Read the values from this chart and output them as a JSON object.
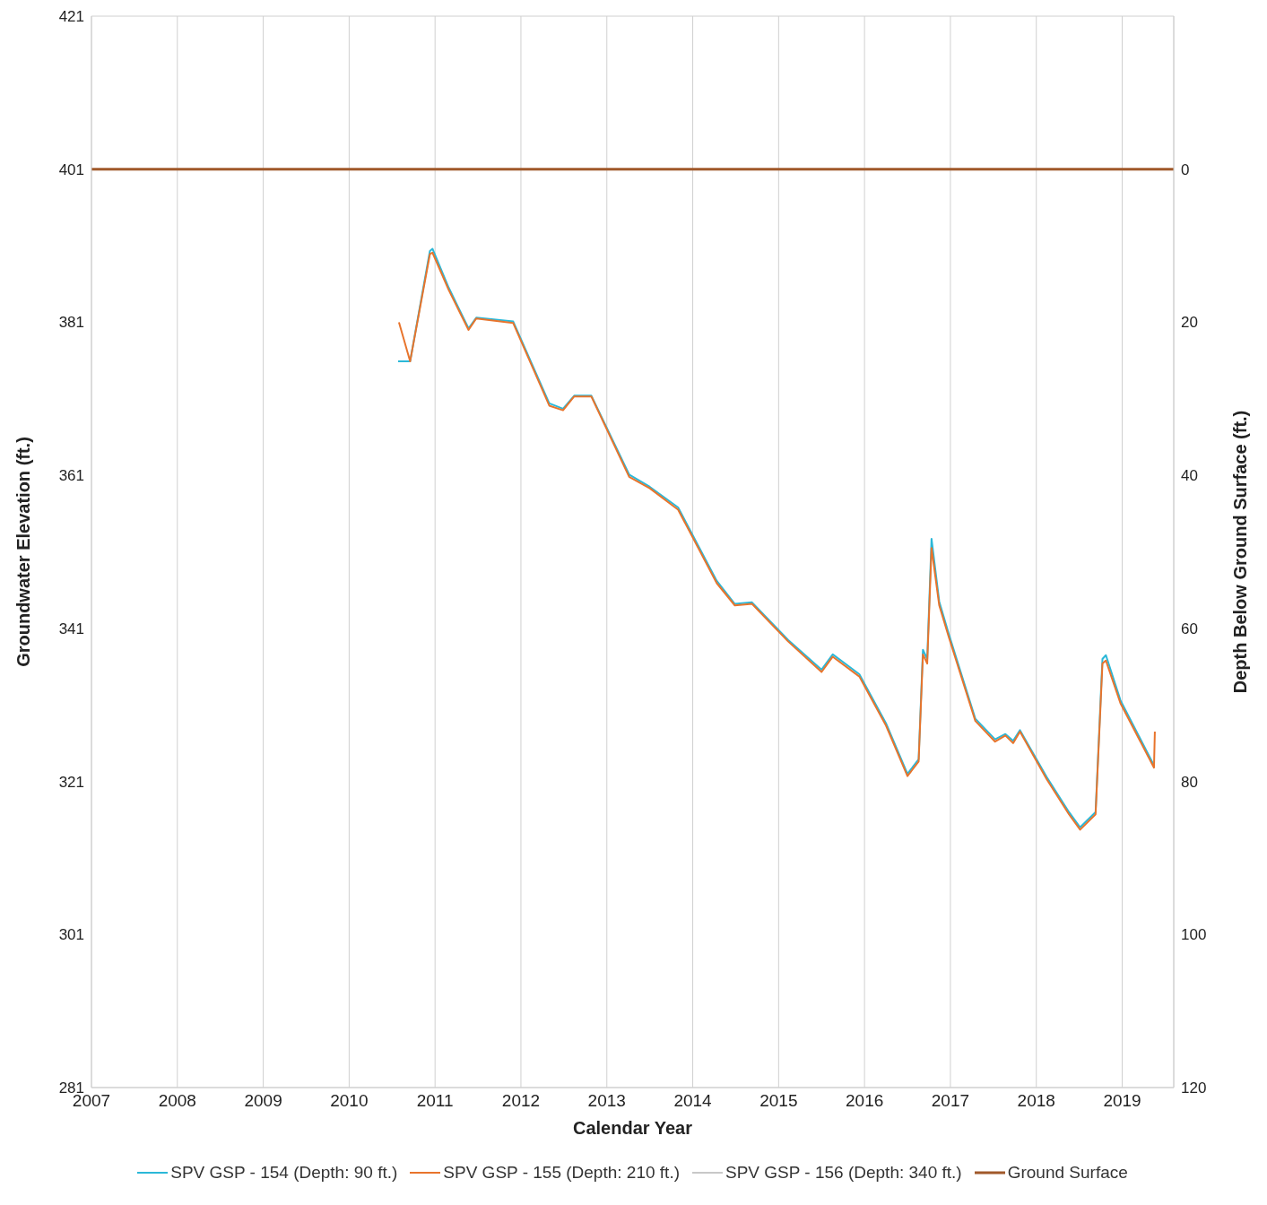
{
  "chart_data": {
    "type": "line",
    "xlabel": "Calendar Year",
    "ylabel": "Groundwater Elevation (ft.)",
    "y2label": "Depth Below Ground Surface (ft.)",
    "xlim": [
      2007,
      2019.6
    ],
    "xticks": [
      2007,
      2008,
      2009,
      2010,
      2011,
      2012,
      2013,
      2014,
      2015,
      2016,
      2017,
      2018,
      2019
    ],
    "ylim": [
      281,
      421
    ],
    "yticks": [
      281,
      301,
      321,
      341,
      361,
      381,
      401,
      421
    ],
    "y2lim": [
      120,
      -20
    ],
    "y2ticks": [
      0,
      20,
      40,
      60,
      80,
      100,
      120
    ],
    "grid": true,
    "legend": "bottom",
    "series": [
      {
        "name": "SPV GSP - 154 (Depth: 90 ft.)",
        "color": "#2bb8d8",
        "x": [
          2010.57,
          2010.71,
          2010.94,
          2010.97,
          2011.16,
          2011.39,
          2011.48,
          2011.91,
          2012.33,
          2012.49,
          2012.62,
          2012.82,
          2013.26,
          2013.5,
          2013.83,
          2014.28,
          2014.49,
          2014.69,
          2015.11,
          2015.5,
          2015.63,
          2015.94,
          2016.25,
          2016.5,
          2016.63,
          2016.68,
          2016.73,
          2016.78,
          2016.87,
          2016.98,
          2017.29,
          2017.52,
          2017.64,
          2017.73,
          2017.81,
          2018.12,
          2018.38,
          2018.51,
          2018.69,
          2018.77,
          2018.81,
          2018.98,
          2019.37
        ],
        "values": [
          375.9,
          375.9,
          390.3,
          390.6,
          385.5,
          380.2,
          381.6,
          381.1,
          370.4,
          369.7,
          371.4,
          371.4,
          361.1,
          359.5,
          356.8,
          347.2,
          344.2,
          344.4,
          339.5,
          335.6,
          337.6,
          335.0,
          328.6,
          322.0,
          323.9,
          338.2,
          337.0,
          352.7,
          344.5,
          340.3,
          329.2,
          326.5,
          327.2,
          326.3,
          327.7,
          321.6,
          317.0,
          315.0,
          317.0,
          337.0,
          337.5,
          331.6,
          323.1
        ]
      },
      {
        "name": "SPV GSP - 155 (Depth: 210 ft.)",
        "color": "#e8742c",
        "x": [
          2010.58,
          2010.71,
          2010.94,
          2010.97,
          2011.16,
          2011.39,
          2011.48,
          2011.91,
          2012.33,
          2012.49,
          2012.62,
          2012.82,
          2013.26,
          2013.5,
          2013.83,
          2014.28,
          2014.49,
          2014.69,
          2015.11,
          2015.5,
          2015.63,
          2015.94,
          2016.25,
          2016.5,
          2016.63,
          2016.68,
          2016.73,
          2016.78,
          2016.87,
          2016.98,
          2017.29,
          2017.52,
          2017.64,
          2017.73,
          2017.81,
          2018.12,
          2018.38,
          2018.51,
          2018.69,
          2018.77,
          2018.81,
          2018.98,
          2019.37,
          2019.38
        ],
        "values": [
          381.0,
          375.9,
          389.9,
          390.1,
          385.2,
          380.0,
          381.5,
          380.9,
          370.1,
          369.5,
          371.3,
          371.3,
          360.8,
          359.3,
          356.5,
          346.9,
          344.0,
          344.2,
          339.3,
          335.3,
          337.3,
          334.7,
          328.3,
          321.7,
          323.6,
          337.6,
          336.4,
          351.5,
          344.0,
          339.9,
          328.9,
          326.2,
          327.0,
          326.0,
          327.5,
          321.3,
          316.7,
          314.7,
          316.7,
          336.4,
          336.8,
          331.2,
          322.8,
          327.5
        ]
      },
      {
        "name": "SPV GSP - 156 (Depth: 340 ft.)",
        "color": "#c8c8c8"
      },
      {
        "name": "Ground Surface",
        "color": "#a0592a",
        "x": [
          2007,
          2019.6
        ],
        "values": [
          401,
          401
        ]
      }
    ]
  }
}
